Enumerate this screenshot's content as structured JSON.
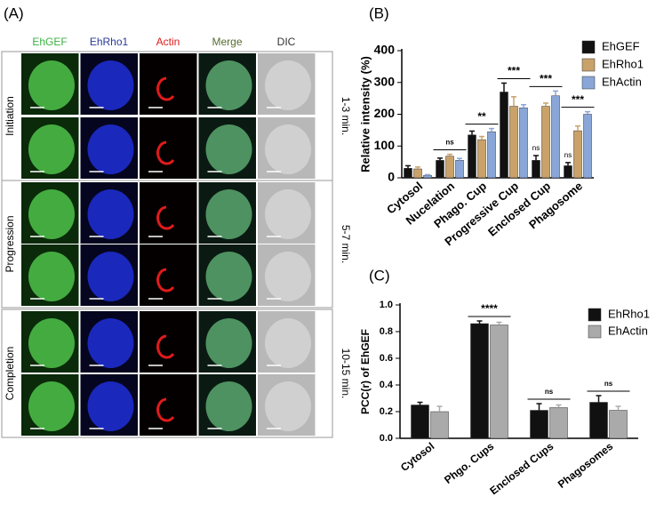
{
  "panel_a": {
    "label": "(A)",
    "columns": [
      "EhGEF",
      "EhRho1",
      "Actin",
      "Merge",
      "DIC"
    ],
    "column_colors": [
      "#3cb043",
      "#2b3a9a",
      "#e01b1b",
      "#556b2f",
      "#333333"
    ],
    "rows": [
      {
        "stage": "Initiation",
        "time": "1-3 min."
      },
      {
        "stage": "Progression",
        "time": "5-7 min."
      },
      {
        "stage": "Completion",
        "time": "10-15 min."
      }
    ]
  },
  "chart_data": [
    {
      "type": "bar",
      "label": "(B)",
      "ylabel": "Relative intensity (%)",
      "categories": [
        "Cytosol",
        "Nucelation",
        "Phago. Cup",
        "Progressive Cup",
        "Enclosed Cup",
        "Phagosome"
      ],
      "series": [
        {
          "name": "EhGEF",
          "color": "#111111",
          "values": [
            30,
            55,
            135,
            270,
            55,
            38
          ],
          "errors": [
            8,
            7,
            12,
            28,
            15,
            10
          ],
          "significance": [
            null,
            null,
            null,
            null,
            "ns",
            "ns"
          ]
        },
        {
          "name": "EhRho1",
          "color": "#c9a26a",
          "values": [
            28,
            68,
            120,
            225,
            225,
            148
          ],
          "errors": [
            6,
            6,
            10,
            30,
            10,
            15
          ]
        },
        {
          "name": "EhActin",
          "color": "#8aa6d8",
          "values": [
            8,
            55,
            145,
            220,
            258,
            200
          ],
          "errors": [
            2,
            6,
            10,
            10,
            15,
            8
          ]
        }
      ],
      "significance": [
        null,
        "ns",
        "**",
        "***",
        "***",
        "***"
      ],
      "ylim": [
        0,
        400
      ],
      "yticks": [
        0,
        100,
        200,
        300,
        400
      ]
    },
    {
      "type": "bar",
      "label": "(C)",
      "ylabel": "PCC(r) of EhGEF",
      "categories": [
        "Cytosol",
        "Phgo. Cups",
        "Enclosed Cups",
        "Phagosomes"
      ],
      "series": [
        {
          "name": "EhRho1",
          "color": "#111111",
          "values": [
            0.25,
            0.86,
            0.21,
            0.27
          ],
          "errors": [
            0.02,
            0.02,
            0.05,
            0.05
          ]
        },
        {
          "name": "EhActin",
          "color": "#aaaaaa",
          "values": [
            0.2,
            0.85,
            0.23,
            0.21
          ],
          "errors": [
            0.04,
            0.02,
            0.02,
            0.03
          ]
        }
      ],
      "significance": [
        null,
        "****",
        "ns",
        "ns"
      ],
      "ylim": [
        0,
        1
      ],
      "yticks": [
        {
          "value": 0,
          "label": "0.0"
        },
        0.2,
        0.4,
        0.6,
        0.8,
        {
          "value": 1,
          "label": "1.0"
        }
      ]
    }
  ]
}
